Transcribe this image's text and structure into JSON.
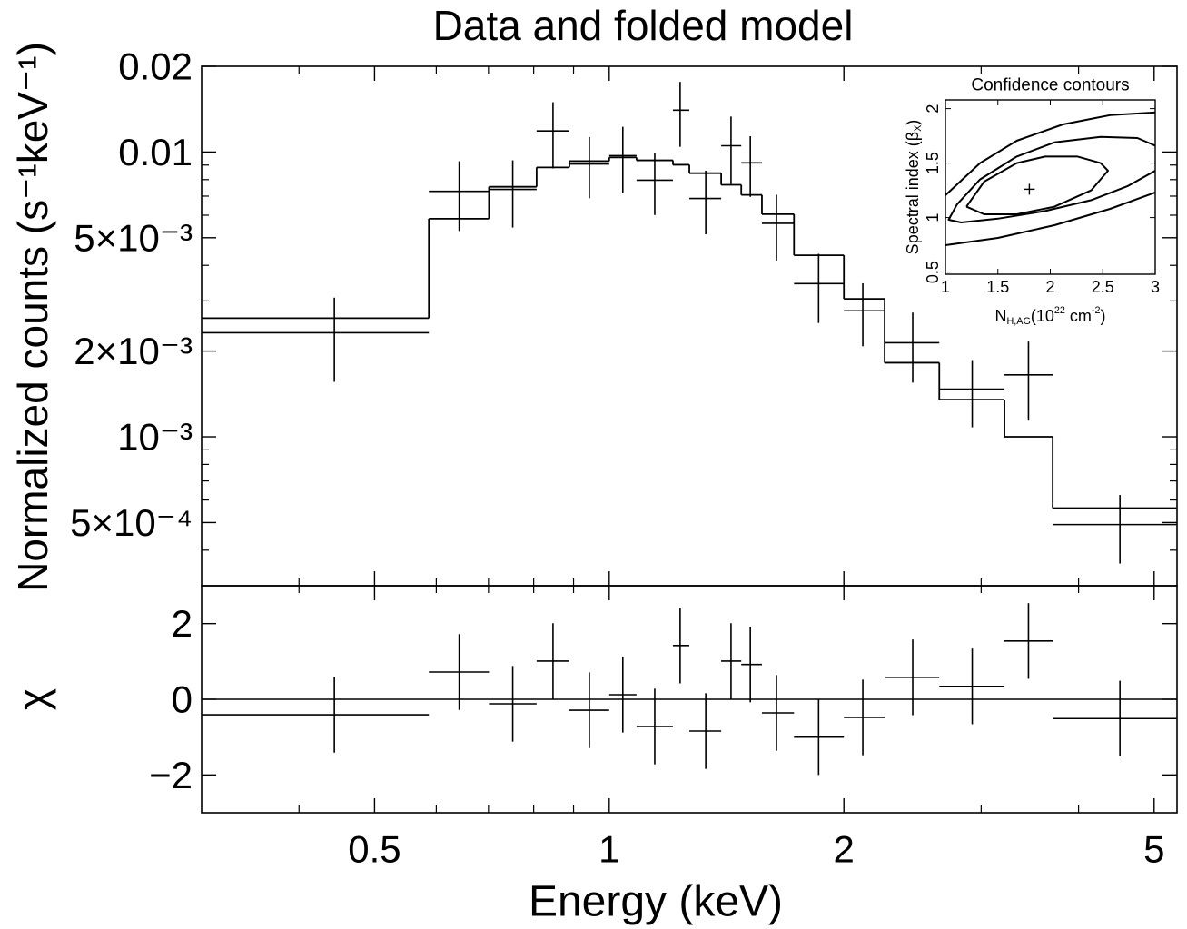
{
  "chart_data": [
    {
      "type": "errorbar",
      "title": "Data and folded model",
      "ylabel": "Normalized counts (s⁻¹keV⁻¹)",
      "log_x": true,
      "log_y": true,
      "xlim": [
        0.3,
        5.35
      ],
      "xticks": [
        0.5,
        1,
        2,
        5
      ],
      "xticks_minor": [
        0.4,
        0.6,
        0.7,
        0.8,
        0.9,
        3,
        4
      ],
      "ylim": [
        0.0003,
        0.02
      ],
      "yticks": [
        0.02,
        0.01,
        {
          "value": 0.005,
          "label": "5×10⁻³"
        },
        {
          "value": 0.002,
          "label": "2×10⁻³"
        },
        {
          "value": 0.001,
          "label": "10⁻³"
        },
        {
          "value": 0.0005,
          "label": "5×10⁻⁴"
        }
      ],
      "yticks_minor": [
        0.0004,
        0.0006,
        0.0007,
        0.0008,
        0.0009,
        0.003,
        0.004,
        0.006,
        0.007,
        0.008,
        0.009
      ],
      "color": "#000000",
      "bin_edges": [
        0.3,
        0.587,
        0.701,
        0.807,
        0.889,
        1.0,
        1.084,
        1.207,
        1.267,
        1.392,
        1.477,
        1.57,
        1.726,
        2.0,
        2.256,
        2.651,
        3.214,
        3.706,
        5.34
      ],
      "x": [
        0.444,
        0.642,
        0.752,
        0.847,
        0.943,
        1.041,
        1.144,
        1.233,
        1.33,
        1.433,
        1.517,
        1.639,
        1.856,
        2.115,
        2.451,
        2.922,
        3.45,
        4.52
      ],
      "values": [
        0.00232,
        0.00728,
        0.00739,
        0.01186,
        0.00908,
        0.00971,
        0.00796,
        0.01403,
        0.00687,
        0.01052,
        0.00916,
        0.00562,
        0.00345,
        0.00277,
        0.00214,
        0.00147,
        0.00165,
        0.000492
      ],
      "errors": [
        0.00076,
        0.002,
        0.00196,
        0.0031,
        0.0022,
        0.00255,
        0.00195,
        0.0036,
        0.00173,
        0.0028,
        0.0022,
        0.00146,
        0.00094,
        0.00069,
        0.00059,
        0.00039,
        0.00051,
        0.000133
      ],
      "model": [
        0.00261,
        0.00583,
        0.00755,
        0.00883,
        0.00929,
        0.00957,
        0.00935,
        0.00902,
        0.00843,
        0.00767,
        0.00707,
        0.00605,
        0.00434,
        0.00305,
        0.00182,
        0.00135,
        0.001,
        0.000562
      ]
    },
    {
      "type": "errorbar",
      "xlabel": "Energy (keV)",
      "ylabel": "χ",
      "log_x": true,
      "log_y": false,
      "xlim": [
        0.3,
        5.35
      ],
      "xticks": [
        0.5,
        1,
        2,
        5
      ],
      "xticks_minor": [
        0.4,
        0.6,
        0.7,
        0.8,
        0.9,
        3,
        4
      ],
      "ylim": [
        -3,
        3
      ],
      "yticks": [
        2,
        0,
        {
          "value": -2,
          "label": "−2"
        }
      ],
      "reference_line": 0,
      "color": "#000000",
      "bin_edges": [
        0.3,
        0.587,
        0.701,
        0.807,
        0.889,
        1.0,
        1.084,
        1.207,
        1.267,
        1.392,
        1.477,
        1.57,
        1.726,
        2.0,
        2.256,
        2.651,
        3.214,
        3.706,
        5.34
      ],
      "x": [
        0.444,
        0.642,
        0.752,
        0.847,
        0.943,
        1.041,
        1.144,
        1.233,
        1.33,
        1.433,
        1.517,
        1.639,
        1.856,
        2.115,
        2.451,
        2.922,
        3.45,
        4.52
      ],
      "values": [
        -0.41,
        0.72,
        -0.12,
        1.01,
        -0.29,
        0.12,
        -0.72,
        1.42,
        -0.84,
        1.01,
        0.92,
        -0.36,
        -1.0,
        -0.48,
        0.58,
        0.34,
        1.54,
        -0.51
      ],
      "errors": [
        1,
        1,
        1,
        1,
        1,
        1,
        1,
        1,
        1,
        1,
        1,
        1,
        1,
        1,
        1,
        1,
        1,
        1
      ]
    },
    {
      "type": "contour",
      "title": "Confidence contours",
      "xlabel_parts": [
        {
          "text": "N"
        },
        {
          "text": "H,AG",
          "sub": true
        },
        {
          "text": "(10"
        },
        {
          "text": "22",
          "sup": true
        },
        {
          "text": " cm"
        },
        {
          "text": "-2",
          "sup": true
        },
        {
          "text": ")"
        }
      ],
      "ylabel_parts": [
        {
          "text": "Spectral index (β"
        },
        {
          "text": "X",
          "sub": true
        },
        {
          "text": ")"
        }
      ],
      "xlim": [
        1,
        3
      ],
      "xticks": [
        1,
        1.5,
        2,
        2.5,
        3
      ],
      "ylim": [
        0.48,
        2.08
      ],
      "yticks": [
        0.5,
        1,
        1.5,
        2
      ],
      "color": "#000000",
      "contours": [
        {
          "x": [
            1.2,
            1.37,
            1.68,
            1.95,
            2.26,
            2.48,
            2.55,
            2.39,
            2.04,
            1.68,
            1.37,
            1.2
          ],
          "y": [
            1.1,
            1.33,
            1.5,
            1.56,
            1.56,
            1.5,
            1.43,
            1.25,
            1.1,
            1.03,
            1.03,
            1.1
          ]
        },
        {
          "x": [
            3.0,
            2.74,
            2.39,
            1.95,
            1.5,
            1.15,
            1.03,
            1.11,
            1.33,
            1.68,
            2.04,
            2.48,
            2.83,
            3.0
          ],
          "y": [
            1.43,
            1.29,
            1.16,
            1.06,
            0.99,
            0.955,
            0.98,
            1.12,
            1.35,
            1.56,
            1.69,
            1.74,
            1.73,
            1.66
          ]
        },
        {
          "x": [
            1.0,
            1.33,
            1.68,
            2.12,
            2.57,
            3.0,
            null,
            1.0,
            1.5,
            2.04,
            2.57,
            3.0
          ],
          "y": [
            1.205,
            1.5,
            1.705,
            1.855,
            1.94,
            1.965,
            null,
            0.747,
            0.813,
            0.93,
            1.08,
            1.23
          ]
        }
      ],
      "best_fit": {
        "x": 1.8,
        "y": 1.26
      }
    }
  ]
}
